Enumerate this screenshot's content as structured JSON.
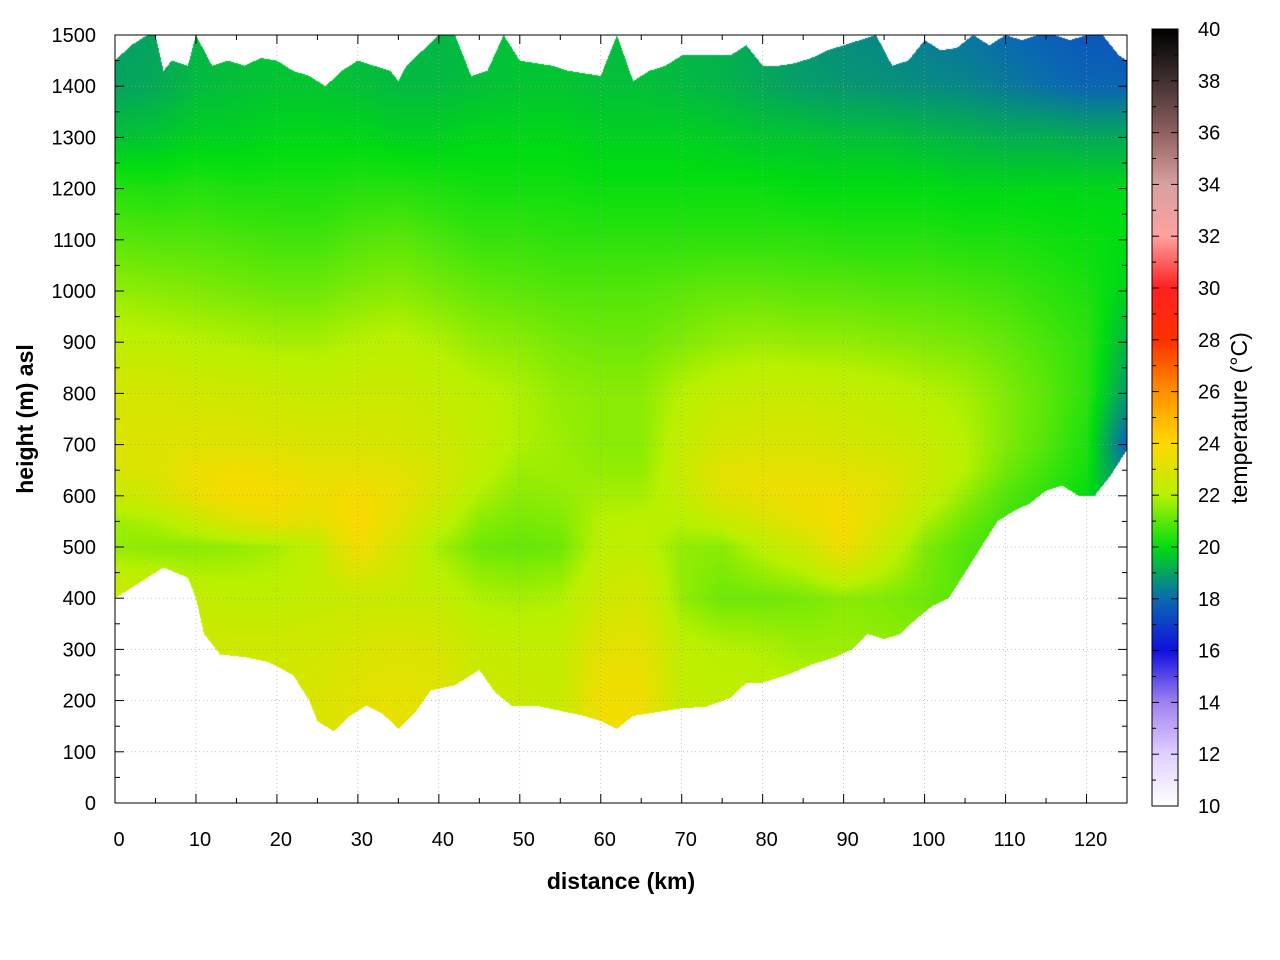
{
  "chart_data": {
    "type": "heatmap",
    "title": "",
    "xlabel": "distance (km)",
    "ylabel": "height (m) asl",
    "colorbar_label": "temperature (°C)",
    "xlim": [
      0,
      125
    ],
    "ylim": [
      0,
      1500
    ],
    "x_ticks": [
      "0",
      "10",
      "20",
      "30",
      "40",
      "50",
      "60",
      "70",
      "80",
      "90",
      "100",
      "110",
      "120"
    ],
    "x_tick_values": [
      0,
      10,
      20,
      30,
      40,
      50,
      60,
      70,
      80,
      90,
      100,
      110,
      120
    ],
    "y_ticks": [
      "0",
      "100",
      "200",
      "300",
      "400",
      "500",
      "600",
      "700",
      "800",
      "900",
      "1000",
      "1100",
      "1200",
      "1300",
      "1400",
      "1500"
    ],
    "y_tick_values": [
      0,
      100,
      200,
      300,
      400,
      500,
      600,
      700,
      800,
      900,
      1000,
      1100,
      1200,
      1300,
      1400,
      1500
    ],
    "grid": true,
    "colorbar": {
      "range": [
        10,
        40
      ],
      "ticks": [
        "10",
        "12",
        "14",
        "16",
        "18",
        "20",
        "22",
        "24",
        "26",
        "28",
        "30",
        "32",
        "34",
        "36",
        "38",
        "40"
      ],
      "tick_values": [
        10,
        12,
        14,
        16,
        18,
        20,
        22,
        24,
        26,
        28,
        30,
        32,
        34,
        36,
        38,
        40
      ],
      "stops": [
        {
          "t": 10,
          "color": "#ffffff"
        },
        {
          "t": 12,
          "color": "#e0d0ff"
        },
        {
          "t": 14,
          "color": "#a080f0"
        },
        {
          "t": 16,
          "color": "#1010e0"
        },
        {
          "t": 18,
          "color": "#0a6ab0"
        },
        {
          "t": 20,
          "color": "#00dd10"
        },
        {
          "t": 22,
          "color": "#b8f000"
        },
        {
          "t": 24,
          "color": "#ffd800"
        },
        {
          "t": 26,
          "color": "#ff9000"
        },
        {
          "t": 28,
          "color": "#ff3000"
        },
        {
          "t": 30,
          "color": "#ff2020"
        },
        {
          "t": 32,
          "color": "#ffa0a0"
        },
        {
          "t": 34,
          "color": "#d8a0a0"
        },
        {
          "t": 36,
          "color": "#906060"
        },
        {
          "t": 38,
          "color": "#403030"
        },
        {
          "t": 40,
          "color": "#000000"
        }
      ]
    },
    "terrain": {
      "x": [
        0,
        3,
        6,
        9,
        10,
        11,
        13,
        16,
        19,
        22,
        24,
        25,
        27,
        29,
        31,
        33,
        35,
        37,
        39,
        42,
        45,
        47,
        49,
        52,
        55,
        58,
        60,
        62,
        64,
        66,
        70,
        73,
        76,
        78,
        80,
        83,
        86,
        89,
        91,
        93,
        95,
        97,
        99,
        101,
        103,
        105,
        107,
        109,
        111,
        113,
        115,
        117,
        119,
        121,
        123,
        125
      ],
      "height": [
        400,
        430,
        460,
        440,
        400,
        330,
        290,
        285,
        275,
        250,
        200,
        160,
        140,
        170,
        190,
        175,
        145,
        175,
        220,
        230,
        260,
        215,
        190,
        190,
        180,
        170,
        160,
        145,
        170,
        175,
        185,
        188,
        205,
        235,
        235,
        250,
        270,
        285,
        300,
        330,
        320,
        330,
        360,
        385,
        400,
        450,
        500,
        550,
        570,
        585,
        610,
        620,
        600,
        600,
        640,
        690
      ]
    },
    "field": {
      "x_km": [
        0,
        5,
        10,
        15,
        20,
        25,
        30,
        35,
        40,
        45,
        50,
        55,
        60,
        65,
        70,
        75,
        80,
        85,
        90,
        95,
        100,
        105,
        110,
        115,
        120,
        125
      ],
      "height_m": [
        100,
        200,
        300,
        400,
        500,
        550,
        600,
        650,
        700,
        800,
        900,
        1000,
        1100,
        1200,
        1300,
        1400,
        1500
      ],
      "temperature_c": [
        [
          22.8,
          22.8,
          22.8,
          22.8,
          22.8,
          22.8,
          23.2,
          23.3,
          23.3,
          22.5,
          22.5,
          22.4,
          23.6,
          23.6,
          22.3,
          22.2,
          22.2,
          22.2,
          22.1,
          22.0,
          22.0,
          21.5,
          21.0,
          20.5,
          20.0,
          19.0
        ],
        [
          22.8,
          22.8,
          22.8,
          22.8,
          22.8,
          22.9,
          23.2,
          23.3,
          23.2,
          22.6,
          22.5,
          22.4,
          23.6,
          23.6,
          22.3,
          22.2,
          22.2,
          22.2,
          22.1,
          22.0,
          22.0,
          21.5,
          21.0,
          20.5,
          20.0,
          19.0
        ],
        [
          22.8,
          22.8,
          22.6,
          22.6,
          22.6,
          22.7,
          22.9,
          23.0,
          22.9,
          22.4,
          22.3,
          22.3,
          23.2,
          23.3,
          22.2,
          22.0,
          21.9,
          21.7,
          21.7,
          21.6,
          21.5,
          21.2,
          20.8,
          20.4,
          20.0,
          19.0
        ],
        [
          22.7,
          22.6,
          22.3,
          22.2,
          22.2,
          22.3,
          22.4,
          22.4,
          22.3,
          21.9,
          21.8,
          21.9,
          22.6,
          22.8,
          21.6,
          21.2,
          21.2,
          21.3,
          21.5,
          21.4,
          21.2,
          20.9,
          20.6,
          20.3,
          20.0,
          19.0
        ],
        [
          21.6,
          21.5,
          21.5,
          21.6,
          21.8,
          22.2,
          23.7,
          22.8,
          21.8,
          21.2,
          21.1,
          21.2,
          22.1,
          22.2,
          21.6,
          21.5,
          22.1,
          22.6,
          23.6,
          22.5,
          21.4,
          20.9,
          20.6,
          20.3,
          20.0,
          19.0
        ],
        [
          21.7,
          21.9,
          22.4,
          23.0,
          23.4,
          23.2,
          23.9,
          23.2,
          22.3,
          21.5,
          21.3,
          21.4,
          22.0,
          22.1,
          22.0,
          22.3,
          22.9,
          23.3,
          23.8,
          23.0,
          21.9,
          21.2,
          20.7,
          20.4,
          20.0,
          19.0
        ],
        [
          22.4,
          22.7,
          23.4,
          23.8,
          23.8,
          23.5,
          23.8,
          23.4,
          22.7,
          21.9,
          21.5,
          21.6,
          21.8,
          21.8,
          22.3,
          23.1,
          23.4,
          23.6,
          23.6,
          23.2,
          22.4,
          21.6,
          20.9,
          20.5,
          20.0,
          18.6
        ],
        [
          22.9,
          23.0,
          23.5,
          23.6,
          23.5,
          23.3,
          23.3,
          23.2,
          22.8,
          22.2,
          21.7,
          21.7,
          21.6,
          21.6,
          22.4,
          23.2,
          23.3,
          23.3,
          23.2,
          23.0,
          22.6,
          22.0,
          21.2,
          20.7,
          20.2,
          18.2
        ],
        [
          23.0,
          23.0,
          23.1,
          23.1,
          23.0,
          22.9,
          22.9,
          22.8,
          22.6,
          22.3,
          21.9,
          21.7,
          21.5,
          21.5,
          22.3,
          22.8,
          22.9,
          22.9,
          22.8,
          22.6,
          22.4,
          22.0,
          21.4,
          20.9,
          20.3,
          17.8
        ],
        [
          22.8,
          22.8,
          22.7,
          22.6,
          22.5,
          22.4,
          22.5,
          22.5,
          22.3,
          22.1,
          21.9,
          21.6,
          21.5,
          21.5,
          22.0,
          22.3,
          22.4,
          22.4,
          22.3,
          22.2,
          22.0,
          21.8,
          21.4,
          21.0,
          20.5,
          18.8
        ],
        [
          22.2,
          22.1,
          22.0,
          21.9,
          21.8,
          21.8,
          22.0,
          22.1,
          21.9,
          21.6,
          21.5,
          21.3,
          21.2,
          21.2,
          21.4,
          21.6,
          21.7,
          21.6,
          21.6,
          21.5,
          21.4,
          21.3,
          21.1,
          20.8,
          20.5,
          19.3
        ],
        [
          21.6,
          21.5,
          21.4,
          21.3,
          21.2,
          21.2,
          21.4,
          21.5,
          21.3,
          21.1,
          21.0,
          20.9,
          20.9,
          20.9,
          21.0,
          21.1,
          21.1,
          21.0,
          21.0,
          20.9,
          20.9,
          20.8,
          20.7,
          20.5,
          20.3,
          19.8
        ],
        [
          21.0,
          20.9,
          20.9,
          20.8,
          20.7,
          20.7,
          20.9,
          21.0,
          20.8,
          20.6,
          20.6,
          20.5,
          20.5,
          20.5,
          20.5,
          20.5,
          20.5,
          20.5,
          20.4,
          20.4,
          20.4,
          20.3,
          20.3,
          20.2,
          20.1,
          20.0
        ],
        [
          20.4,
          20.3,
          20.4,
          20.3,
          20.3,
          20.3,
          20.4,
          20.4,
          20.3,
          20.2,
          20.2,
          20.2,
          20.1,
          20.1,
          20.1,
          20.1,
          20.1,
          20.0,
          20.0,
          20.0,
          20.0,
          19.9,
          19.9,
          19.9,
          19.9,
          19.9
        ],
        [
          19.5,
          19.6,
          19.8,
          19.8,
          19.9,
          19.9,
          19.9,
          19.8,
          19.8,
          19.9,
          19.9,
          19.9,
          19.8,
          19.8,
          19.8,
          19.7,
          19.6,
          19.6,
          19.5,
          19.5,
          19.4,
          19.3,
          19.2,
          19.2,
          19.1,
          19.1
        ],
        [
          19.0,
          19.1,
          19.4,
          19.5,
          19.6,
          19.6,
          19.5,
          19.4,
          19.4,
          19.5,
          19.6,
          19.6,
          19.5,
          19.5,
          19.4,
          19.3,
          19.1,
          18.9,
          18.8,
          18.7,
          18.6,
          18.5,
          18.3,
          18.1,
          17.9,
          17.9
        ],
        [
          18.9,
          19.0,
          19.3,
          19.4,
          19.5,
          19.5,
          19.4,
          19.3,
          19.3,
          19.4,
          19.5,
          19.5,
          19.4,
          19.4,
          19.3,
          19.2,
          19.0,
          18.8,
          18.6,
          18.5,
          18.3,
          18.2,
          18.0,
          17.8,
          17.6,
          17.5
        ]
      ]
    },
    "top_boundary": {
      "x": [
        0,
        2,
        4,
        5,
        6,
        7,
        9,
        10,
        12,
        14,
        16,
        18,
        20,
        22,
        24,
        26,
        28,
        30,
        32,
        34,
        35,
        36,
        38,
        40,
        42,
        44,
        46,
        48,
        50,
        52,
        54,
        56,
        58,
        60,
        62,
        64,
        66,
        68,
        70,
        72,
        74,
        76,
        78,
        80,
        82,
        84,
        86,
        88,
        90,
        92,
        94,
        96,
        98,
        100,
        102,
        104,
        106,
        108,
        110,
        112,
        114,
        116,
        118,
        120,
        122,
        124,
        125
      ],
      "height": [
        1450,
        1480,
        1500,
        1500,
        1430,
        1450,
        1440,
        1500,
        1440,
        1450,
        1440,
        1455,
        1450,
        1430,
        1420,
        1400,
        1430,
        1450,
        1440,
        1430,
        1410,
        1440,
        1470,
        1500,
        1500,
        1420,
        1430,
        1500,
        1450,
        1445,
        1440,
        1430,
        1425,
        1420,
        1500,
        1410,
        1430,
        1440,
        1460,
        1460,
        1460,
        1460,
        1480,
        1440,
        1440,
        1445,
        1455,
        1470,
        1480,
        1490,
        1500,
        1440,
        1450,
        1490,
        1470,
        1475,
        1500,
        1480,
        1500,
        1490,
        1500,
        1500,
        1490,
        1500,
        1500,
        1460,
        1450
      ]
    }
  }
}
